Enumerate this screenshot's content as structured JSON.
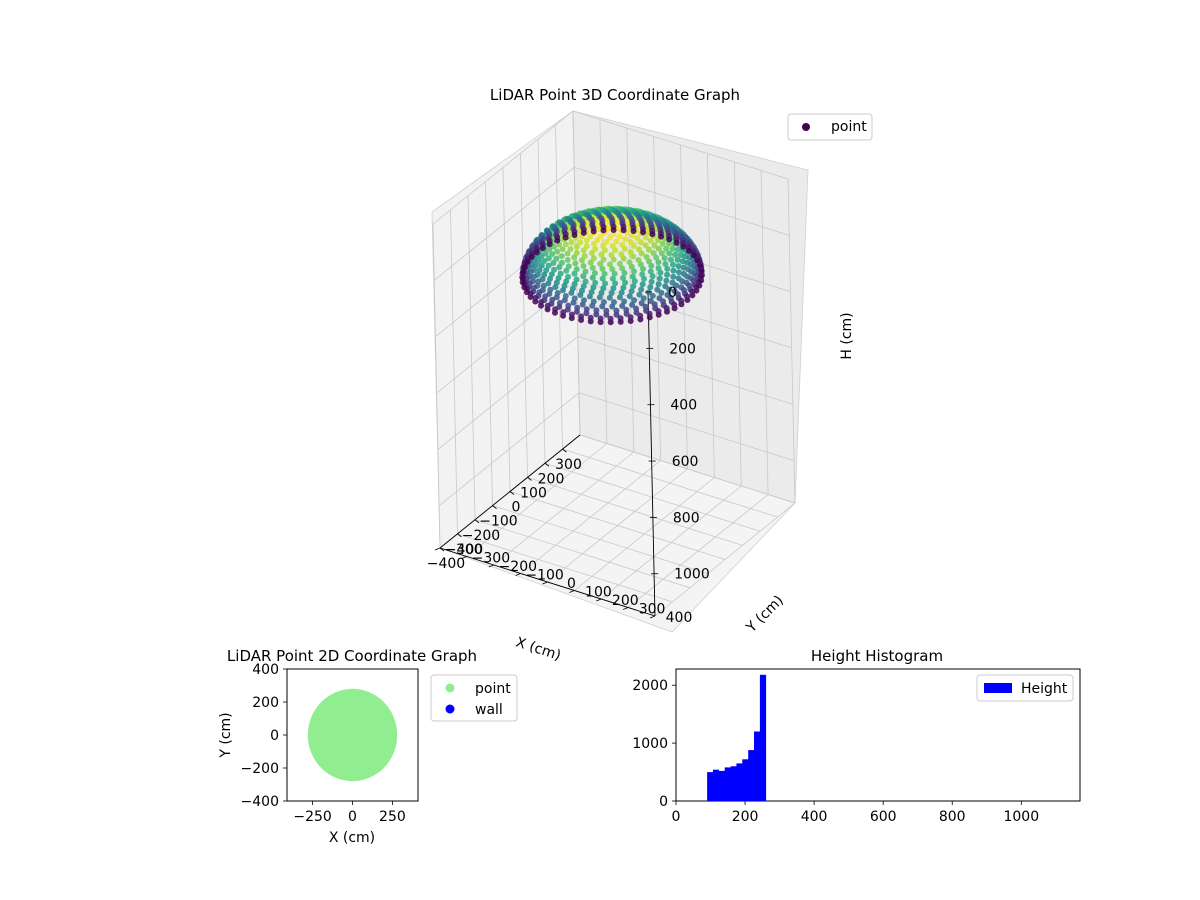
{
  "chart_data": [
    {
      "type": "scatter",
      "title": "LiDAR Point 3D Coordinate Graph",
      "xlabel": "X (cm)",
      "ylabel": "Y (cm)",
      "zlabel": "H (cm)",
      "xlim": [
        -400,
        400
      ],
      "ylim": [
        -400,
        400
      ],
      "zlim": [
        0,
        1150
      ],
      "z_inverted": true,
      "x_ticks": [
        "−400",
        "−300",
        "−200",
        "−100",
        "0",
        "100",
        "200",
        "300"
      ],
      "y_ticks": [
        "−400",
        "−300",
        "−200",
        "−100",
        "0",
        "100",
        "200",
        "300",
        "400"
      ],
      "z_ticks": [
        "0",
        "200",
        "400",
        "600",
        "800",
        "1000"
      ],
      "shape": "hemispherical bowl",
      "bowl_radius": 280,
      "bowl_height_range": [
        90,
        265
      ],
      "colormap": "viridis",
      "legend": {
        "position": "top-right",
        "entries": [
          {
            "name": "point",
            "color": "#440154"
          }
        ]
      },
      "grid": true
    },
    {
      "type": "scatter",
      "title": "LiDAR Point 2D Coordinate Graph",
      "xlabel": "X (cm)",
      "ylabel": "Y (cm)",
      "xlim": [
        -410,
        410
      ],
      "ylim": [
        -400,
        400
      ],
      "x_ticks": [
        "−250",
        "0",
        "250"
      ],
      "y_ticks": [
        "−400",
        "−200",
        "0",
        "200",
        "400"
      ],
      "series": [
        {
          "name": "point",
          "color": "#90ee90",
          "shape": "disk",
          "center": [
            0,
            0
          ],
          "radius": 280
        },
        {
          "name": "wall",
          "color": "#0000ff",
          "count": 0
        }
      ],
      "legend": {
        "position": "outside-right",
        "entries": [
          "point",
          "wall"
        ]
      },
      "grid": false
    },
    {
      "type": "bar",
      "title": "Height Histogram",
      "xlabel": "",
      "ylabel": "",
      "xlim": [
        0,
        1170
      ],
      "ylim": [
        0,
        2280
      ],
      "x_ticks": [
        "0",
        "200",
        "400",
        "600",
        "800",
        "1000"
      ],
      "y_ticks": [
        "0",
        "1000",
        "2000"
      ],
      "bins": [
        {
          "from": 90,
          "to": 107,
          "count": 500
        },
        {
          "from": 107,
          "to": 124,
          "count": 540
        },
        {
          "from": 124,
          "to": 141,
          "count": 520
        },
        {
          "from": 141,
          "to": 158,
          "count": 580
        },
        {
          "from": 158,
          "to": 175,
          "count": 600
        },
        {
          "from": 175,
          "to": 192,
          "count": 650
        },
        {
          "from": 192,
          "to": 209,
          "count": 720
        },
        {
          "from": 209,
          "to": 226,
          "count": 880
        },
        {
          "from": 226,
          "to": 243,
          "count": 1200
        },
        {
          "from": 243,
          "to": 260,
          "count": 2180
        }
      ],
      "bar_color": "#0000ff",
      "legend": {
        "position": "top-right",
        "entries": [
          "Height"
        ]
      },
      "grid": false
    }
  ]
}
